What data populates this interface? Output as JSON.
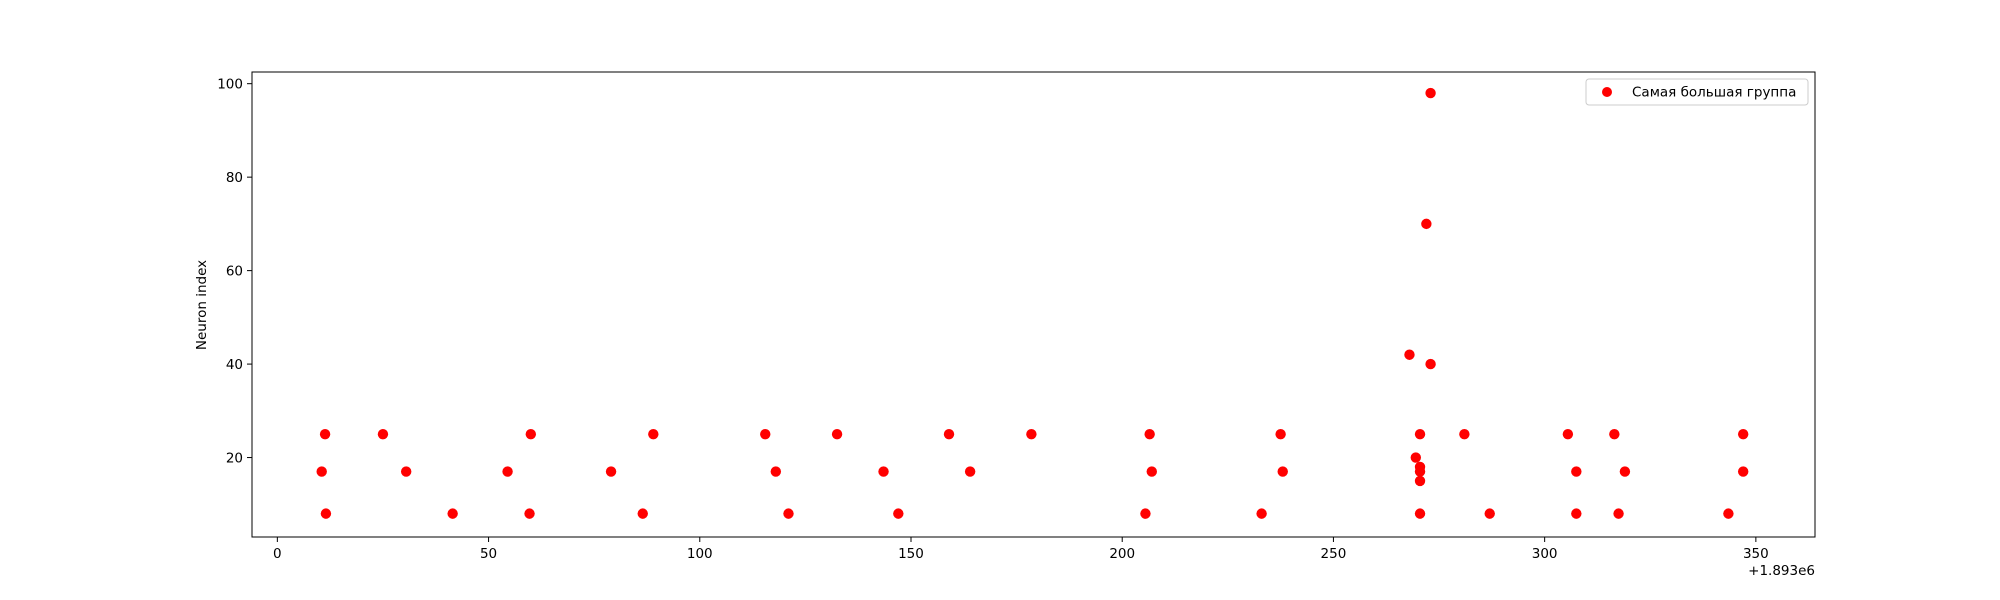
{
  "chart_data": {
    "type": "scatter",
    "title": "",
    "xlabel": "",
    "ylabel": "Neuron index",
    "x_offset_label": "+1.893e6",
    "xlim": [
      -6,
      364
    ],
    "ylim": [
      3,
      102.5
    ],
    "x_ticks": [
      0,
      50,
      100,
      150,
      200,
      250,
      300,
      350
    ],
    "x_tick_labels": [
      "0",
      "50",
      "100",
      "150",
      "200",
      "250",
      "300",
      "350"
    ],
    "y_ticks": [
      20,
      40,
      60,
      80,
      100
    ],
    "y_tick_labels": [
      "20",
      "40",
      "60",
      "80",
      "100"
    ],
    "grid": false,
    "legend_position": "top-right",
    "series": [
      {
        "name": "Самая большая группа",
        "color": "#ff0000",
        "marker": "circle",
        "points": [
          {
            "x": 10.5,
            "y": 17
          },
          {
            "x": 11.3,
            "y": 25
          },
          {
            "x": 11.5,
            "y": 8
          },
          {
            "x": 25,
            "y": 25
          },
          {
            "x": 30.5,
            "y": 17
          },
          {
            "x": 41.5,
            "y": 8
          },
          {
            "x": 54.5,
            "y": 17
          },
          {
            "x": 59.7,
            "y": 8
          },
          {
            "x": 60,
            "y": 25
          },
          {
            "x": 79,
            "y": 17
          },
          {
            "x": 86.5,
            "y": 8
          },
          {
            "x": 89,
            "y": 25
          },
          {
            "x": 115.5,
            "y": 25
          },
          {
            "x": 118,
            "y": 17
          },
          {
            "x": 121,
            "y": 8
          },
          {
            "x": 132.5,
            "y": 25
          },
          {
            "x": 143.5,
            "y": 17
          },
          {
            "x": 147,
            "y": 8
          },
          {
            "x": 159,
            "y": 25
          },
          {
            "x": 164,
            "y": 17
          },
          {
            "x": 178.5,
            "y": 25
          },
          {
            "x": 205.5,
            "y": 8
          },
          {
            "x": 206.5,
            "y": 25
          },
          {
            "x": 207,
            "y": 17
          },
          {
            "x": 233,
            "y": 8
          },
          {
            "x": 237.5,
            "y": 25
          },
          {
            "x": 238,
            "y": 17
          },
          {
            "x": 268,
            "y": 42
          },
          {
            "x": 269.5,
            "y": 20
          },
          {
            "x": 270.5,
            "y": 25
          },
          {
            "x": 270.5,
            "y": 18
          },
          {
            "x": 270.5,
            "y": 17
          },
          {
            "x": 270.5,
            "y": 15
          },
          {
            "x": 270.5,
            "y": 8
          },
          {
            "x": 272,
            "y": 70
          },
          {
            "x": 273,
            "y": 98
          },
          {
            "x": 273,
            "y": 40
          },
          {
            "x": 281,
            "y": 25
          },
          {
            "x": 287,
            "y": 8
          },
          {
            "x": 305.5,
            "y": 25
          },
          {
            "x": 307.5,
            "y": 17
          },
          {
            "x": 307.5,
            "y": 8
          },
          {
            "x": 316.5,
            "y": 25
          },
          {
            "x": 317.5,
            "y": 8
          },
          {
            "x": 319,
            "y": 17
          },
          {
            "x": 343.5,
            "y": 8
          },
          {
            "x": 347,
            "y": 25
          },
          {
            "x": 347,
            "y": 17
          }
        ]
      }
    ]
  }
}
